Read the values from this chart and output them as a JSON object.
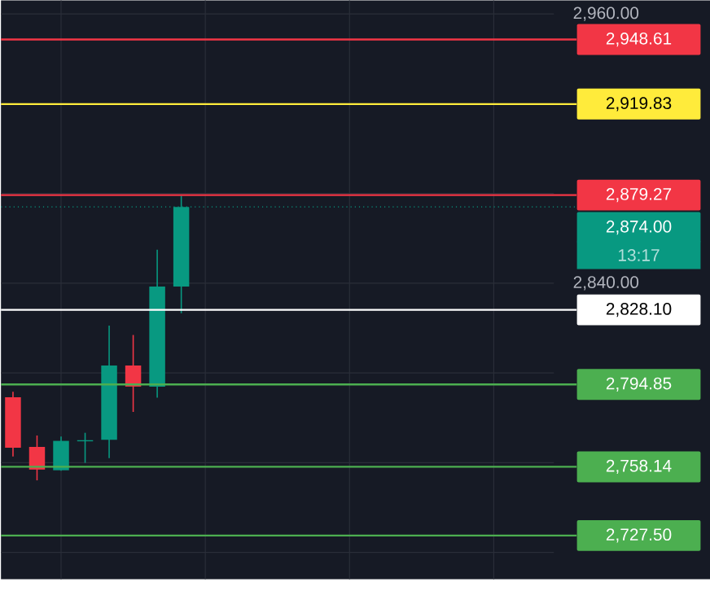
{
  "chart_data": {
    "type": "candlestick",
    "categories": [
      null,
      null,
      null,
      null,
      null,
      null,
      null,
      null,
      null,
      null,
      null,
      null,
      null,
      null,
      null,
      null,
      null,
      null,
      null,
      null,
      null,
      null,
      null
    ],
    "ohlc": [
      [
        2789.1,
        2791.6,
        2762.7,
        2766.6
      ],
      [
        2767.0,
        2772.1,
        2752.1,
        2756.9
      ],
      [
        2756.6,
        2771.6,
        2756.4,
        2769.7
      ],
      [
        2769.5,
        2773.3,
        2759.9,
        2770.0
      ],
      [
        2770.2,
        2821.1,
        2762.0,
        2803.3
      ],
      [
        2803.3,
        2816.9,
        2782.6,
        2793.9
      ],
      [
        2793.9,
        2854.9,
        2789.0,
        2838.5
      ],
      [
        2838.5,
        2878.9,
        2826.6,
        2874.0
      ],
      null,
      null,
      null,
      null,
      null,
      null,
      null,
      null,
      null,
      null,
      null,
      null,
      null,
      null,
      null
    ],
    "colors": [
      "#f23645",
      "#f23645",
      "#089981",
      "#089981",
      "#089981",
      "#f23645",
      "#089981",
      "#089981",
      null,
      null,
      null,
      null,
      null,
      null,
      null,
      null,
      null,
      null,
      null,
      null,
      null,
      null,
      null
    ],
    "ylim": [
      2708,
      2966
    ],
    "yticks": [
      {
        "value": 2720,
        "label": null
      },
      {
        "value": 2760,
        "label": null
      },
      {
        "value": 2800,
        "label": null
      },
      {
        "value": 2840,
        "label": "2,840.00"
      },
      {
        "value": 2880,
        "label": null
      },
      {
        "value": 2920,
        "label": null
      },
      {
        "value": 2960,
        "label": "2,960.00"
      }
    ],
    "grid": true,
    "tick_labels": "y",
    "ref_lines": [
      {
        "axis": "y",
        "value": 2948.61,
        "label": "2,948.61",
        "color": "#f23645"
      },
      {
        "axis": "y",
        "value": 2919.83,
        "label": "2,919.83",
        "color": "#ffeb3b"
      },
      {
        "axis": "y",
        "value": 2879.27,
        "label": "2,879.27",
        "color": "#f23645"
      },
      {
        "axis": "y",
        "value": 2874.0,
        "label": "2,874.00",
        "color": "#089981",
        "line_style": "dotted"
      },
      {
        "axis": "y",
        "value": 2828.1,
        "label": "2,828.10",
        "color": "#ffffff"
      },
      {
        "axis": "y",
        "value": 2794.85,
        "label": "2,794.85",
        "color": "#4caf50"
      },
      {
        "axis": "y",
        "value": 2758.14,
        "label": "2,758.14",
        "color": "#4caf50"
      },
      {
        "axis": "y",
        "value": 2727.5,
        "label": "2,727.50",
        "color": "#4caf50"
      }
    ],
    "annotations": [
      "13:17"
    ]
  }
}
